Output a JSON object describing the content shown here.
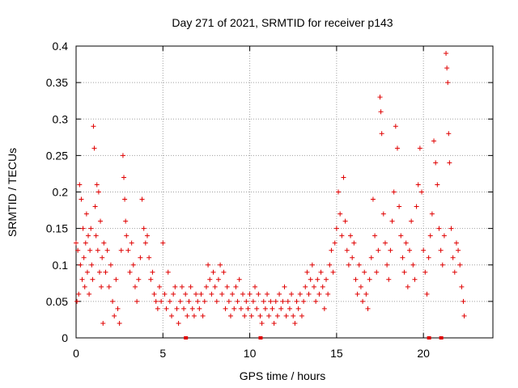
{
  "chart_data": {
    "type": "scatter",
    "title": "Day 271 of 2021, SRMTID for receiver p143",
    "xlabel": "GPS time / hours",
    "ylabel": "SRMTID / TECUs",
    "xlim": [
      0,
      24
    ],
    "ylim": [
      0,
      0.4
    ],
    "xticks": [
      0,
      5,
      10,
      15,
      20
    ],
    "yticks": [
      0,
      0.05,
      0.1,
      0.15,
      0.2,
      0.25,
      0.3,
      0.35,
      0.4
    ],
    "grid": true,
    "marker": "+",
    "color": "#e00000",
    "series": [
      {
        "name": "SRMTID",
        "points": [
          [
            0.0,
            0.13
          ],
          [
            0.05,
            0.05
          ],
          [
            0.1,
            0.12
          ],
          [
            0.15,
            0.06
          ],
          [
            0.2,
            0.21
          ],
          [
            0.25,
            0.1
          ],
          [
            0.3,
            0.19
          ],
          [
            0.35,
            0.08
          ],
          [
            0.4,
            0.15
          ],
          [
            0.45,
            0.11
          ],
          [
            0.5,
            0.07
          ],
          [
            0.55,
            0.13
          ],
          [
            0.6,
            0.17
          ],
          [
            0.65,
            0.09
          ],
          [
            0.7,
            0.14
          ],
          [
            0.75,
            0.06
          ],
          [
            0.8,
            0.12
          ],
          [
            0.85,
            0.15
          ],
          [
            0.9,
            0.1
          ],
          [
            0.95,
            0.08
          ],
          [
            1.0,
            0.29
          ],
          [
            1.05,
            0.26
          ],
          [
            1.1,
            0.18
          ],
          [
            1.15,
            0.14
          ],
          [
            1.2,
            0.21
          ],
          [
            1.25,
            0.12
          ],
          [
            1.3,
            0.2
          ],
          [
            1.35,
            0.09
          ],
          [
            1.4,
            0.16
          ],
          [
            1.45,
            0.07
          ],
          [
            1.5,
            0.11
          ],
          [
            1.55,
            0.02
          ],
          [
            1.6,
            0.13
          ],
          [
            1.7,
            0.09
          ],
          [
            1.8,
            0.12
          ],
          [
            1.9,
            0.07
          ],
          [
            2.0,
            0.1
          ],
          [
            2.1,
            0.05
          ],
          [
            2.2,
            0.03
          ],
          [
            2.3,
            0.08
          ],
          [
            2.4,
            0.04
          ],
          [
            2.5,
            0.02
          ],
          [
            2.6,
            0.12
          ],
          [
            2.7,
            0.25
          ],
          [
            2.75,
            0.22
          ],
          [
            2.8,
            0.19
          ],
          [
            2.85,
            0.16
          ],
          [
            2.9,
            0.14
          ],
          [
            3.0,
            0.12
          ],
          [
            3.1,
            0.09
          ],
          [
            3.2,
            0.13
          ],
          [
            3.3,
            0.1
          ],
          [
            3.4,
            0.07
          ],
          [
            3.5,
            0.05
          ],
          [
            3.6,
            0.08
          ],
          [
            3.7,
            0.11
          ],
          [
            3.8,
            0.19
          ],
          [
            3.9,
            0.15
          ],
          [
            4.0,
            0.13
          ],
          [
            4.1,
            0.14
          ],
          [
            4.2,
            0.11
          ],
          [
            4.3,
            0.08
          ],
          [
            4.4,
            0.09
          ],
          [
            4.5,
            0.06
          ],
          [
            4.6,
            0.05
          ],
          [
            4.7,
            0.04
          ],
          [
            4.8,
            0.07
          ],
          [
            4.9,
            0.05
          ],
          [
            5.0,
            0.13
          ],
          [
            5.1,
            0.06
          ],
          [
            5.2,
            0.04
          ],
          [
            5.3,
            0.09
          ],
          [
            5.4,
            0.05
          ],
          [
            5.5,
            0.03
          ],
          [
            5.6,
            0.06
          ],
          [
            5.7,
            0.07
          ],
          [
            5.8,
            0.04
          ],
          [
            5.9,
            0.02
          ],
          [
            6.0,
            0.05
          ],
          [
            6.1,
            0.07
          ],
          [
            6.2,
            0.04
          ],
          [
            6.3,
            0.06
          ],
          [
            6.4,
            0.03
          ],
          [
            6.5,
            0.05
          ],
          [
            6.6,
            0.07
          ],
          [
            6.7,
            0.04
          ],
          [
            6.8,
            0.03
          ],
          [
            6.9,
            0.06
          ],
          [
            7.0,
            0.05
          ],
          [
            7.1,
            0.04
          ],
          [
            7.2,
            0.06
          ],
          [
            7.3,
            0.03
          ],
          [
            7.4,
            0.05
          ],
          [
            7.5,
            0.07
          ],
          [
            7.6,
            0.1
          ],
          [
            7.7,
            0.08
          ],
          [
            7.8,
            0.06
          ],
          [
            7.9,
            0.09
          ],
          [
            8.0,
            0.07
          ],
          [
            8.1,
            0.05
          ],
          [
            8.2,
            0.08
          ],
          [
            8.3,
            0.1
          ],
          [
            8.4,
            0.06
          ],
          [
            8.5,
            0.09
          ],
          [
            8.6,
            0.04
          ],
          [
            8.7,
            0.07
          ],
          [
            8.8,
            0.05
          ],
          [
            8.9,
            0.03
          ],
          [
            9.0,
            0.06
          ],
          [
            9.1,
            0.04
          ],
          [
            9.2,
            0.07
          ],
          [
            9.3,
            0.05
          ],
          [
            9.4,
            0.08
          ],
          [
            9.5,
            0.04
          ],
          [
            9.6,
            0.06
          ],
          [
            9.7,
            0.03
          ],
          [
            9.8,
            0.05
          ],
          [
            9.9,
            0.04
          ],
          [
            10.0,
            0.06
          ],
          [
            10.1,
            0.03
          ],
          [
            10.2,
            0.05
          ],
          [
            10.3,
            0.07
          ],
          [
            10.4,
            0.04
          ],
          [
            10.5,
            0.06
          ],
          [
            10.6,
            0.03
          ],
          [
            10.7,
            0.02
          ],
          [
            10.8,
            0.05
          ],
          [
            10.9,
            0.04
          ],
          [
            11.0,
            0.06
          ],
          [
            11.1,
            0.03
          ],
          [
            11.2,
            0.05
          ],
          [
            11.3,
            0.04
          ],
          [
            11.4,
            0.02
          ],
          [
            11.5,
            0.05
          ],
          [
            11.6,
            0.03
          ],
          [
            11.7,
            0.06
          ],
          [
            11.8,
            0.04
          ],
          [
            11.9,
            0.05
          ],
          [
            12.0,
            0.07
          ],
          [
            12.1,
            0.03
          ],
          [
            12.2,
            0.05
          ],
          [
            12.3,
            0.04
          ],
          [
            12.4,
            0.06
          ],
          [
            12.5,
            0.03
          ],
          [
            12.6,
            0.02
          ],
          [
            12.7,
            0.05
          ],
          [
            12.8,
            0.04
          ],
          [
            12.9,
            0.06
          ],
          [
            13.0,
            0.03
          ],
          [
            13.1,
            0.05
          ],
          [
            13.2,
            0.07
          ],
          [
            13.3,
            0.09
          ],
          [
            13.4,
            0.06
          ],
          [
            13.5,
            0.08
          ],
          [
            13.6,
            0.1
          ],
          [
            13.7,
            0.07
          ],
          [
            13.8,
            0.05
          ],
          [
            13.9,
            0.08
          ],
          [
            14.0,
            0.06
          ],
          [
            14.1,
            0.09
          ],
          [
            14.2,
            0.07
          ],
          [
            14.3,
            0.04
          ],
          [
            14.4,
            0.08
          ],
          [
            14.5,
            0.06
          ],
          [
            14.6,
            0.1
          ],
          [
            14.7,
            0.12
          ],
          [
            14.8,
            0.09
          ],
          [
            14.9,
            0.13
          ],
          [
            15.0,
            0.15
          ],
          [
            15.1,
            0.2
          ],
          [
            15.2,
            0.17
          ],
          [
            15.3,
            0.14
          ],
          [
            15.4,
            0.22
          ],
          [
            15.5,
            0.16
          ],
          [
            15.6,
            0.12
          ],
          [
            15.7,
            0.1
          ],
          [
            15.8,
            0.14
          ],
          [
            15.9,
            0.11
          ],
          [
            16.0,
            0.13
          ],
          [
            16.1,
            0.08
          ],
          [
            16.2,
            0.06
          ],
          [
            16.3,
            0.1
          ],
          [
            16.4,
            0.07
          ],
          [
            16.5,
            0.05
          ],
          [
            16.6,
            0.09
          ],
          [
            16.7,
            0.06
          ],
          [
            16.8,
            0.04
          ],
          [
            16.9,
            0.08
          ],
          [
            17.0,
            0.11
          ],
          [
            17.1,
            0.19
          ],
          [
            17.2,
            0.14
          ],
          [
            17.3,
            0.09
          ],
          [
            17.4,
            0.12
          ],
          [
            17.5,
            0.33
          ],
          [
            17.55,
            0.31
          ],
          [
            17.6,
            0.28
          ],
          [
            17.7,
            0.17
          ],
          [
            17.8,
            0.13
          ],
          [
            17.9,
            0.1
          ],
          [
            18.0,
            0.08
          ],
          [
            18.1,
            0.12
          ],
          [
            18.2,
            0.16
          ],
          [
            18.3,
            0.2
          ],
          [
            18.4,
            0.29
          ],
          [
            18.5,
            0.26
          ],
          [
            18.6,
            0.18
          ],
          [
            18.7,
            0.14
          ],
          [
            18.8,
            0.11
          ],
          [
            18.9,
            0.09
          ],
          [
            19.0,
            0.13
          ],
          [
            19.1,
            0.07
          ],
          [
            19.2,
            0.12
          ],
          [
            19.3,
            0.16
          ],
          [
            19.4,
            0.1
          ],
          [
            19.5,
            0.08
          ],
          [
            19.6,
            0.18
          ],
          [
            19.7,
            0.21
          ],
          [
            19.8,
            0.26
          ],
          [
            19.9,
            0.2
          ],
          [
            20.0,
            0.12
          ],
          [
            20.1,
            0.09
          ],
          [
            20.2,
            0.06
          ],
          [
            20.3,
            0.11
          ],
          [
            20.4,
            0.14
          ],
          [
            20.5,
            0.17
          ],
          [
            20.6,
            0.27
          ],
          [
            20.7,
            0.24
          ],
          [
            20.8,
            0.21
          ],
          [
            20.9,
            0.15
          ],
          [
            21.0,
            0.12
          ],
          [
            21.1,
            0.1
          ],
          [
            21.2,
            0.14
          ],
          [
            21.3,
            0.39
          ],
          [
            21.35,
            0.37
          ],
          [
            21.4,
            0.35
          ],
          [
            21.45,
            0.28
          ],
          [
            21.5,
            0.24
          ],
          [
            21.6,
            0.15
          ],
          [
            21.7,
            0.11
          ],
          [
            21.8,
            0.09
          ],
          [
            21.9,
            0.13
          ],
          [
            22.0,
            0.12
          ],
          [
            22.1,
            0.1
          ],
          [
            22.2,
            0.07
          ],
          [
            22.3,
            0.05
          ],
          [
            22.35,
            0.03
          ]
        ]
      }
    ],
    "gap_markers_x": [
      6.3,
      10.6,
      20.3,
      21.0
    ]
  }
}
